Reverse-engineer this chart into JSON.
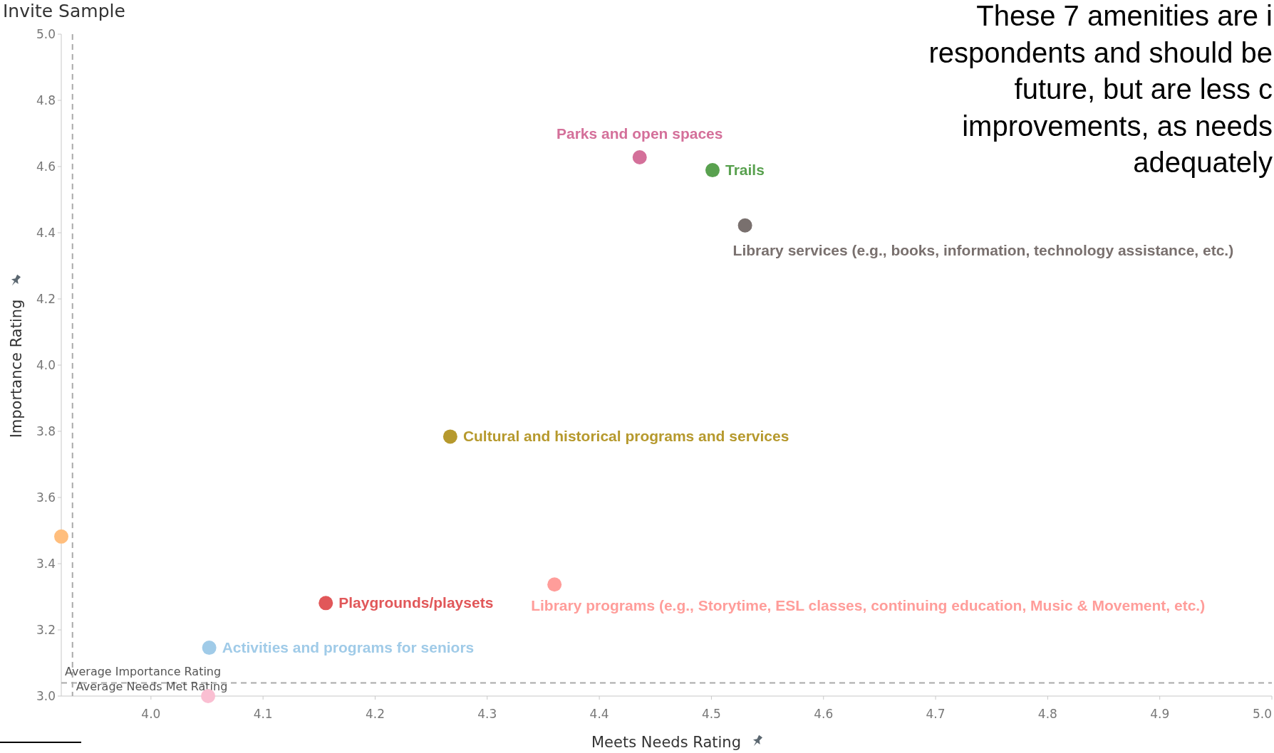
{
  "chart_data": {
    "type": "scatter",
    "title": "Invite Sample",
    "xlabel": "Meets Needs Rating",
    "ylabel": "Importance Rating",
    "annotations": [
      "These 7 amenities are i\nrespondents and should be\nfuture, but are less c\nimprovements, as needs\nadequately"
    ],
    "xlim": [
      3.92,
      5.0
    ],
    "ylim": [
      3.0,
      5.0
    ],
    "xticks": [
      {
        "value": 4,
        "label": "4.0"
      },
      4.1,
      4.2,
      4.3,
      4.4,
      4.5,
      4.6,
      4.7,
      4.8,
      4.9,
      {
        "value": 5,
        "label": "5.0"
      }
    ],
    "yticks": [
      {
        "value": 3,
        "label": "3.0"
      },
      3.2,
      3.4,
      3.6,
      3.8,
      {
        "value": 4,
        "label": "4.0"
      },
      4.2,
      4.4,
      4.6,
      4.8,
      {
        "value": 5,
        "label": "5.0"
      }
    ],
    "grid": false,
    "marker": "circle",
    "ref_lines": [
      {
        "axis": "y",
        "value": 3.04,
        "label": "Average Importance Rating",
        "color": "#aaaaaa",
        "line_style": "dashed"
      },
      {
        "axis": "x",
        "value": 3.93,
        "label": "Average Needs Met Rating",
        "color": "#aaaaaa",
        "line_style": "dashed"
      }
    ],
    "series": [
      {
        "name": "Parks and open spaces",
        "color": "#d4709a",
        "x": [
          4.436
        ],
        "values": [
          4.628
        ]
      },
      {
        "name": "Trails",
        "color": "#59a14f",
        "x": [
          4.501
        ],
        "values": [
          4.589
        ]
      },
      {
        "name": "Library services (e.g., books, information, technology assistance, etc.)",
        "color": "#79706e",
        "x": [
          4.53
        ],
        "values": [
          4.422
        ]
      },
      {
        "name": "Cultural and historical programs and services",
        "color": "#b6992d",
        "x": [
          4.267
        ],
        "values": [
          3.784
        ]
      },
      {
        "name": "Library programs (e.g., Storytime, ESL classes, continuing education, Music & Movement, etc.)",
        "color": "#ff9d9a",
        "x": [
          4.36
        ],
        "values": [
          3.337
        ]
      },
      {
        "name": "Playgrounds/playsets",
        "color": "#e15759",
        "x": [
          4.156
        ],
        "values": [
          3.281
        ]
      },
      {
        "name": "Activities and programs for seniors",
        "color": "#a0cbe8",
        "x": [
          4.052
        ],
        "values": [
          3.146
        ]
      },
      {
        "color": "#ffbe7d",
        "x": [
          3.92
        ],
        "values": [
          3.482
        ]
      },
      {
        "color": "#fabfd2",
        "x": [
          4.051
        ],
        "values": [
          3.0
        ]
      }
    ]
  }
}
